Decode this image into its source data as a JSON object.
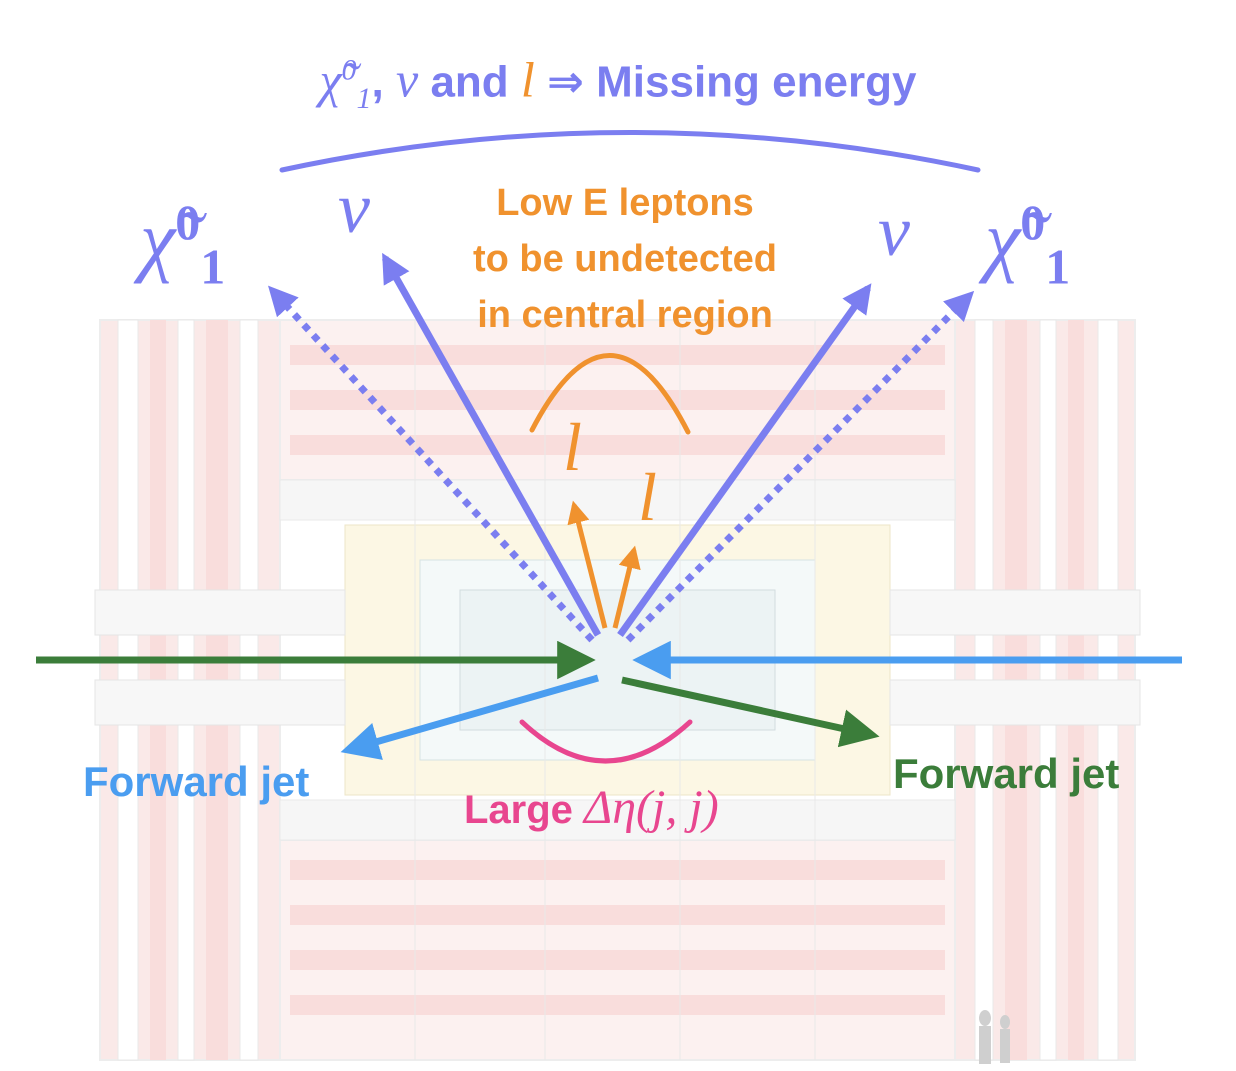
{
  "colors": {
    "purple": "#7b7ef0",
    "orange": "#f0922e",
    "green": "#3b7d3a",
    "blue": "#4a9df0",
    "pink": "#e8468f",
    "detector_red": "#f4b9b5",
    "detector_gray": "#d9d9d9",
    "detector_yellow": "#fbf0c8"
  },
  "title": {
    "chi": "χ̃",
    "chi_sup": "0",
    "chi_sub": "1",
    "after_chi": ",",
    "nu": "ν",
    "and": " and ",
    "ell": "l",
    "arrow": " ⇒ ",
    "missing": "Missing energy"
  },
  "neutralino_left": {
    "chi": "χ̃",
    "sup": "0",
    "sub": "1"
  },
  "neutralino_right": {
    "chi": "χ̃",
    "sup": "0",
    "sub": "1"
  },
  "neutrino_left": "ν",
  "neutrino_right": "ν",
  "leptons_note": {
    "line1": "Low E leptons",
    "line2": "to be undetected",
    "line3": "in central region"
  },
  "lepton_left": "l",
  "lepton_right": "l",
  "forward_jet_left": "Forward jet",
  "forward_jet_right": "Forward jet",
  "large_eta": {
    "word": "Large ",
    "math": "Δη(j, j)"
  }
}
